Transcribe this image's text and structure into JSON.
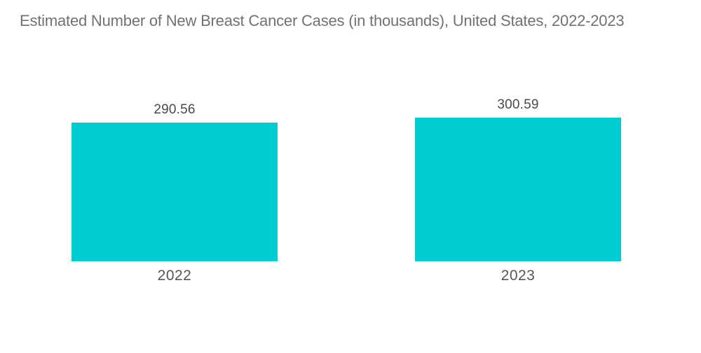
{
  "chart_data": {
    "type": "bar",
    "title": "Estimated Number of New Breast Cancer Cases (in thousands), United States, 2022-2023",
    "categories": [
      "2022",
      "2023"
    ],
    "values": [
      290.56,
      300.59
    ],
    "value_labels": [
      "290.56",
      "300.59"
    ],
    "xlabel": "",
    "ylabel": "",
    "ylim": [
      0,
      440
    ],
    "grid": false,
    "legend": false,
    "colors": {
      "bar": "#00CCD2",
      "title_text": "#6E7277",
      "value_label_text": "#46494D",
      "category_label_text": "#53575B",
      "background": "#FFFFFF"
    }
  }
}
